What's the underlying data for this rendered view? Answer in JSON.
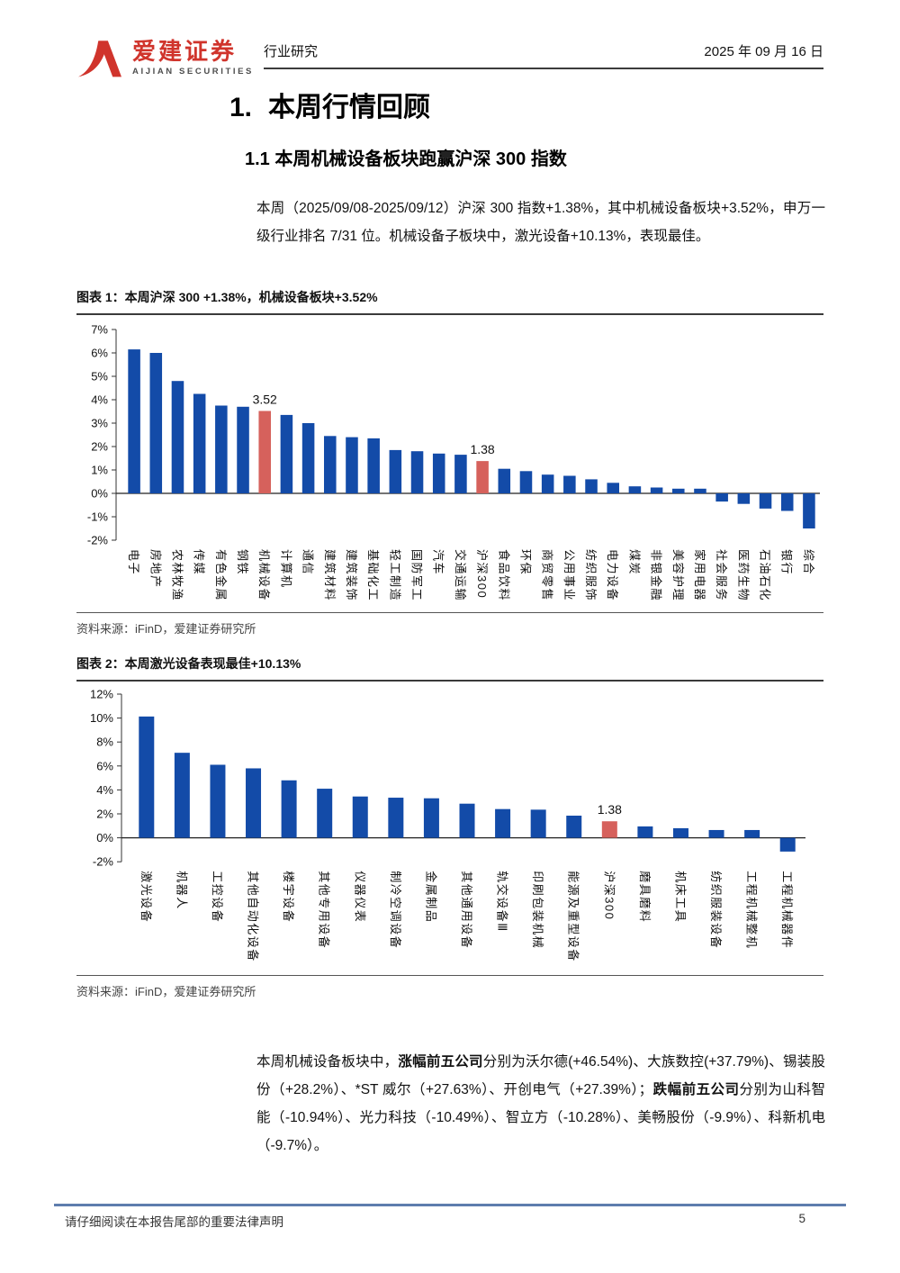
{
  "header": {
    "brand_cn": "爱建证券",
    "brand_en": "AIJIAN SECURITIES",
    "brand_color": "#d0342c",
    "report_type": "行业研究",
    "date": "2025 年 09 月 16 日"
  },
  "section": {
    "number": "1.",
    "title": "本周行情回顾"
  },
  "subsection": {
    "title": "1.1 本周机械设备板块跑赢沪深 300 指数"
  },
  "intro_paragraph": "本周（2025/09/08-2025/09/12）沪深 300 指数+1.38%，其中机械设备板块+3.52%，申万一级行业排名 7/31 位。机械设备子板块中，激光设备+10.13%，表现最佳。",
  "figure1": {
    "title": "图表 1：本周沪深 300 +1.38%，机械设备板块+3.52%",
    "source": "资料来源：iFinD，爱建证券研究所"
  },
  "figure2": {
    "title": "图表 2：本周激光设备表现最佳+10.13%",
    "source": "资料来源：iFinD，爱建证券研究所"
  },
  "chart_data": [
    {
      "type": "bar",
      "title": "本周沪深 300 +1.38%，机械设备板块+3.52%",
      "ylim": [
        -2,
        7
      ],
      "ytick_step": 1,
      "ytick_suffix": "%",
      "grid": false,
      "bar_color": "#134ba8",
      "highlight_color": "#d6615c",
      "categories": [
        "电子",
        "房地产",
        "农林牧渔",
        "传媒",
        "有色金属",
        "钢铁",
        "机械设备",
        "计算机",
        "通信",
        "建筑材料",
        "建筑装饰",
        "基础化工",
        "轻工制造",
        "国防军工",
        "汽车",
        "交通运输",
        "沪深300",
        "食品饮料",
        "环保",
        "商贸零售",
        "公用事业",
        "纺织服饰",
        "电力设备",
        "煤炭",
        "非银金融",
        "美容护理",
        "家用电器",
        "社会服务",
        "医药生物",
        "石油石化",
        "银行",
        "综合"
      ],
      "values": [
        6.15,
        6.0,
        4.8,
        4.25,
        3.75,
        3.7,
        3.52,
        3.35,
        3.0,
        2.45,
        2.4,
        2.35,
        1.85,
        1.8,
        1.7,
        1.65,
        1.38,
        1.05,
        0.95,
        0.8,
        0.75,
        0.6,
        0.45,
        0.3,
        0.25,
        0.2,
        0.2,
        -0.35,
        -0.45,
        -0.65,
        -0.75,
        -1.5
      ],
      "highlights": [
        {
          "index": 6,
          "label": "3.52"
        },
        {
          "index": 16,
          "label": "1.38"
        }
      ]
    },
    {
      "type": "bar",
      "title": "本周激光设备表现最佳+10.13%",
      "ylim": [
        -2,
        12
      ],
      "ytick_step": 2,
      "ytick_suffix": "%",
      "grid": false,
      "bar_color": "#134ba8",
      "highlight_color": "#d6615c",
      "categories": [
        "激光设备",
        "机器人",
        "工控设备",
        "其他自动化设备",
        "楼宇设备",
        "其他专用设备",
        "仪器仪表",
        "制冷空调设备",
        "金属制品",
        "其他通用设备",
        "轨交设备Ⅲ",
        "印刷包装机械",
        "能源及重型设备",
        "沪深300",
        "磨具磨料",
        "机床工具",
        "纺织服装设备",
        "工程机械整机",
        "工程机械器件"
      ],
      "values": [
        10.13,
        7.1,
        6.1,
        5.8,
        4.8,
        4.1,
        3.45,
        3.35,
        3.3,
        2.85,
        2.4,
        2.35,
        1.85,
        1.38,
        0.95,
        0.8,
        0.65,
        0.65,
        -1.15
      ],
      "highlights": [
        {
          "index": 13,
          "label": "1.38"
        }
      ]
    }
  ],
  "summary_paragraph": {
    "segments": [
      {
        "text": "本周机械设备板块中，",
        "bold": false
      },
      {
        "text": "涨幅前五公司",
        "bold": true
      },
      {
        "text": "分别为沃尔德(+46.54%)、大族数控(+37.79%)、锡装股份（+28.2%）、*ST 威尔（+27.63%）、开创电气（+27.39%）；",
        "bold": false
      },
      {
        "text": "跌幅前五公司",
        "bold": true
      },
      {
        "text": "分别为山科智能（-10.94%）、光力科技（-10.49%）、智立方（-10.28%）、美畅股份（-9.9%）、科新机电（-9.7%）。",
        "bold": false
      }
    ]
  },
  "footer": {
    "disclaimer": "请仔细阅读在本报告尾部的重要法律声明",
    "page_number": "5"
  }
}
